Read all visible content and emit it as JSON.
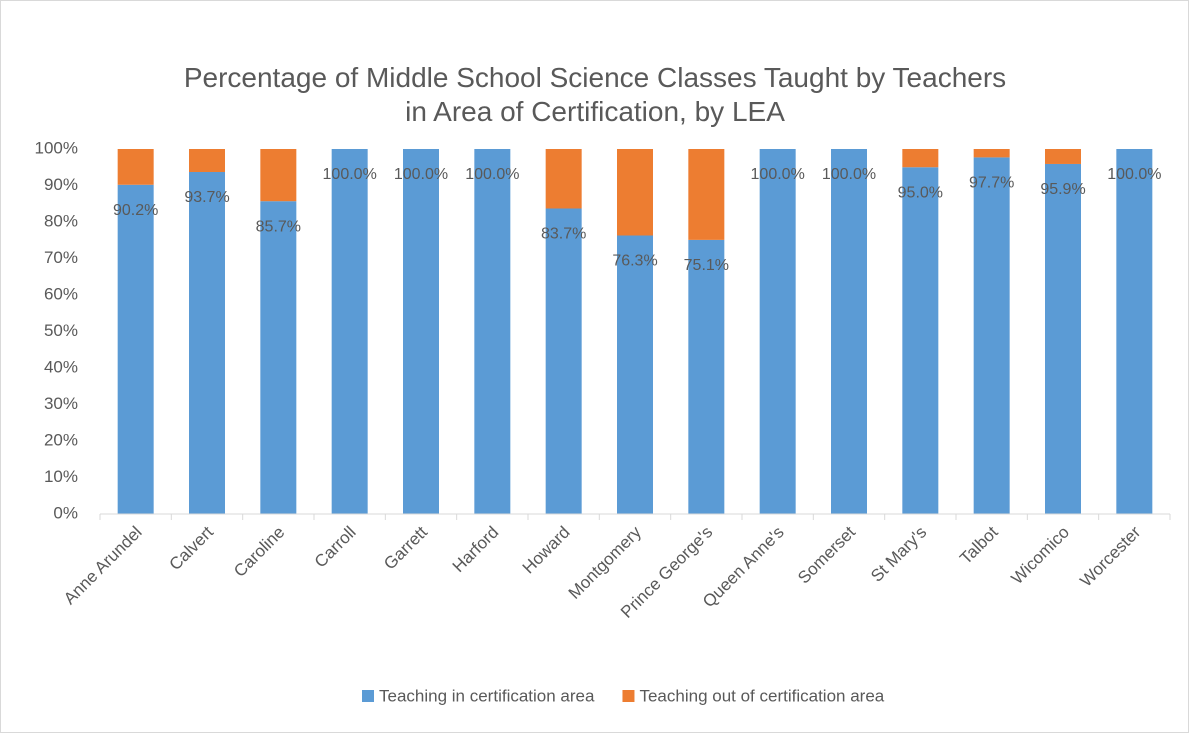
{
  "chart_data": {
    "type": "stacked_bar",
    "title": "Percentage of Middle School Science Classes Taught by Teachers in Area of Certification, by LEA",
    "categories": [
      "Anne Arundel",
      "Calvert",
      "Caroline",
      "Carroll",
      "Garrett",
      "Harford",
      "Howard",
      "Montgomery",
      "Prince George's",
      "Queen Anne's",
      "Somerset",
      "St Mary's",
      "Talbot",
      "Wicomico",
      "Worcester"
    ],
    "series": [
      {
        "name": "Teaching in certification area",
        "color": "#5b9bd5",
        "values": [
          90.2,
          93.7,
          85.7,
          100.0,
          100.0,
          100.0,
          83.7,
          76.3,
          75.1,
          100.0,
          100.0,
          95.0,
          97.7,
          95.9,
          100.0
        ],
        "value_labels": [
          "90.2%",
          "93.7%",
          "85.7%",
          "100.0%",
          "100.0%",
          "100.0%",
          "83.7%",
          "76.3%",
          "75.1%",
          "100.0%",
          "100.0%",
          "95.0%",
          "97.7%",
          "95.9%",
          "100.0%"
        ]
      },
      {
        "name": "Teaching out of certification area",
        "color": "#ed7d31",
        "values": [
          9.8,
          6.3,
          14.3,
          0,
          0,
          0,
          16.3,
          23.7,
          24.9,
          0,
          0,
          5.0,
          2.3,
          4.1,
          0
        ]
      }
    ],
    "ylim": [
      0,
      100
    ],
    "yticks": [
      {
        "value": 0,
        "label": "0%"
      },
      {
        "value": 10,
        "label": "10%"
      },
      {
        "value": 20,
        "label": "20%"
      },
      {
        "value": 30,
        "label": "30%"
      },
      {
        "value": 40,
        "label": "40%"
      },
      {
        "value": 50,
        "label": "50%"
      },
      {
        "value": 60,
        "label": "60%"
      },
      {
        "value": 70,
        "label": "70%"
      },
      {
        "value": 80,
        "label": "80%"
      },
      {
        "value": 90,
        "label": "90%"
      },
      {
        "value": 100,
        "label": "100%"
      }
    ],
    "grid": false,
    "legend": "bottom"
  }
}
